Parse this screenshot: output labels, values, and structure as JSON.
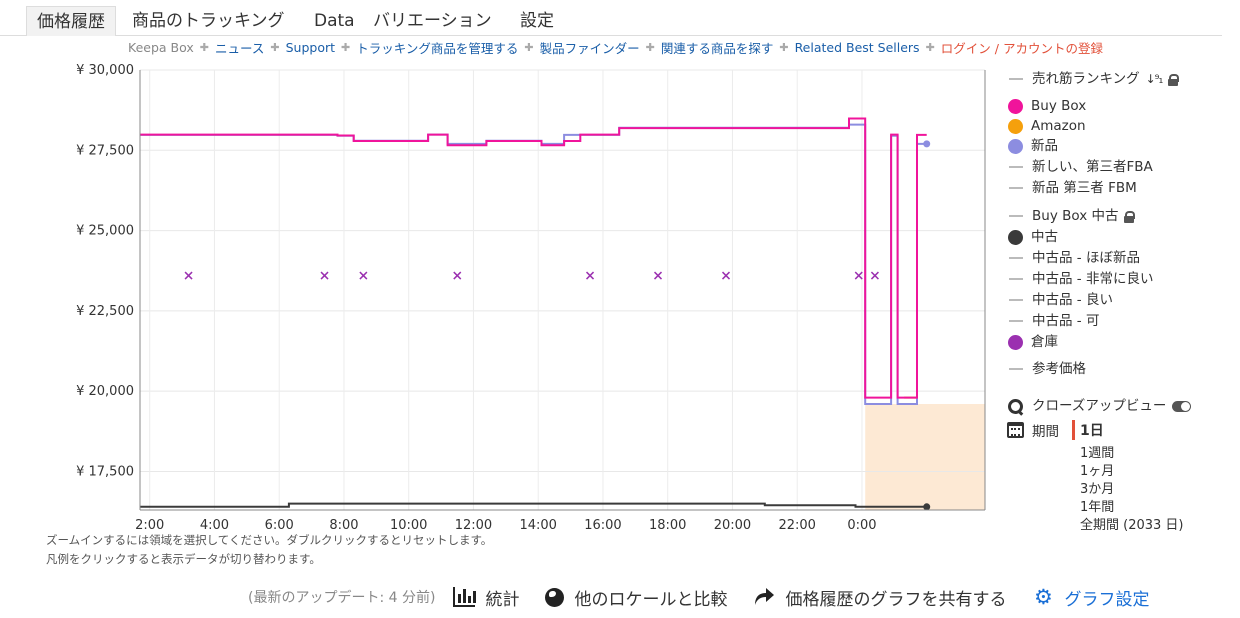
{
  "tabs": [
    {
      "label": "価格履歴",
      "active": true
    },
    {
      "label": "商品のトラッキング",
      "active": false
    },
    {
      "label": "Data",
      "active": false
    },
    {
      "label": "バリエーション",
      "active": false
    },
    {
      "label": "設定",
      "active": false
    }
  ],
  "subnav": {
    "keepa_box": "Keepa Box",
    "links": [
      "ニュース",
      "Support",
      "トラッキング商品を管理する",
      "製品ファインダー",
      "関連する商品を探す",
      "Related Best Sellers"
    ],
    "login": "ログイン / アカウントの登録"
  },
  "notes": {
    "line1": "ズームインするには領域を選択してください。ダブルクリックするとリセットします。",
    "line2": "凡例をクリックすると表示データが切り替わります。"
  },
  "legend": {
    "items": [
      {
        "label": "売れ筋ランキング",
        "marker": "dash",
        "lock": true,
        "sort": true
      },
      {
        "label": "Buy Box",
        "marker": "dot",
        "color": "#f0149b"
      },
      {
        "label": "Amazon",
        "marker": "dot",
        "color": "#f5a00c"
      },
      {
        "label": "新品",
        "marker": "dot",
        "color": "#8c8de0"
      },
      {
        "label": "新しい、第三者FBA",
        "marker": "dash"
      },
      {
        "label": "新品 第三者 FBM",
        "marker": "dash"
      },
      {
        "label": "Buy Box 中古",
        "marker": "dash",
        "lock": true
      },
      {
        "label": "中古",
        "marker": "dot",
        "color": "#3a3a3a"
      },
      {
        "label": "中古品 - ほぼ新品",
        "marker": "dash"
      },
      {
        "label": "中古品 - 非常に良い",
        "marker": "dash"
      },
      {
        "label": "中古品 - 良い",
        "marker": "dash"
      },
      {
        "label": "中古品 - 可",
        "marker": "dash"
      },
      {
        "label": "倉庫",
        "marker": "dot",
        "color": "#9b30b0"
      },
      {
        "label": "参考価格",
        "marker": "dash"
      }
    ],
    "closeup_label": "クローズアップビュー",
    "period_label": "期間",
    "period_options": [
      "1日",
      "1週間",
      "1ヶ月",
      "3か月",
      "1年間",
      "全期間 (2033 日)"
    ],
    "period_selected": "1日"
  },
  "footer": {
    "update": "(最新のアップデート: 4 分前)",
    "stats": "統計",
    "compare": "他のロケールと比較",
    "share": "価格履歴のグラフを共有する",
    "settings": "グラフ設定"
  },
  "chart_data": {
    "type": "line",
    "x_unit": "hours (Day 0 0:00 = 0, 0:00 on the next day = 24)",
    "x_range": [
      -0.3,
      25.8
    ],
    "xticks": [
      {
        "x": 0,
        "label": "2:00"
      },
      {
        "x": 2,
        "label": "4:00"
      },
      {
        "x": 4,
        "label": "6:00"
      },
      {
        "x": 6,
        "label": "8:00"
      },
      {
        "x": 8,
        "label": "10:00"
      },
      {
        "x": 10,
        "label": "12:00"
      },
      {
        "x": 12,
        "label": "14:00"
      },
      {
        "x": 14,
        "label": "16:00"
      },
      {
        "x": 16,
        "label": "18:00"
      },
      {
        "x": 18,
        "label": "20:00"
      },
      {
        "x": 20,
        "label": "22:00"
      },
      {
        "x": 22,
        "label": "0:00"
      }
    ],
    "ylim": [
      16300,
      30000
    ],
    "yticks": [
      {
        "v": 17500,
        "label": "¥ 17,500"
      },
      {
        "v": 20000,
        "label": "¥ 20,000"
      },
      {
        "v": 22500,
        "label": "¥ 22,500"
      },
      {
        "v": 25000,
        "label": "¥ 25,000"
      },
      {
        "v": 27500,
        "label": "¥ 27,500"
      },
      {
        "v": 30000,
        "label": "¥ 30,000"
      }
    ],
    "grid": true,
    "shaded_regions": [
      {
        "x0": 22.1,
        "x1": 25.8,
        "y_top": 19600,
        "color": "#fde9d4"
      }
    ],
    "series": [
      {
        "name": "新品",
        "color": "#8c8de0",
        "width": 2,
        "step": true,
        "points": [
          [
            -0.3,
            27980
          ],
          [
            5.8,
            27980
          ],
          [
            5.8,
            27950
          ],
          [
            6.3,
            27950
          ],
          [
            6.3,
            27800
          ],
          [
            8.6,
            27800
          ],
          [
            8.6,
            27990
          ],
          [
            9.2,
            27990
          ],
          [
            9.2,
            27700
          ],
          [
            10.4,
            27700
          ],
          [
            10.4,
            27800
          ],
          [
            12.1,
            27800
          ],
          [
            12.1,
            27700
          ],
          [
            12.8,
            27700
          ],
          [
            12.8,
            27980
          ],
          [
            14.5,
            27980
          ],
          [
            14.5,
            28200
          ],
          [
            21.6,
            28200
          ],
          [
            21.6,
            28300
          ],
          [
            22.1,
            28300
          ],
          [
            22.1,
            19600
          ],
          [
            22.9,
            19600
          ],
          [
            22.9,
            27950
          ],
          [
            23.1,
            27950
          ],
          [
            23.1,
            19600
          ],
          [
            23.7,
            19600
          ],
          [
            23.7,
            27700
          ],
          [
            24.0,
            27700
          ]
        ],
        "end_dot": true
      },
      {
        "name": "Amazon",
        "color": "#f5a00c",
        "width": 2,
        "step": true,
        "points": [
          [
            23.3,
            19800
          ],
          [
            23.7,
            19800
          ]
        ]
      },
      {
        "name": "Buy Box",
        "color": "#f0149b",
        "width": 2,
        "step": true,
        "points": [
          [
            -0.3,
            27990
          ],
          [
            5.8,
            27990
          ],
          [
            5.8,
            27960
          ],
          [
            6.3,
            27960
          ],
          [
            6.3,
            27790
          ],
          [
            8.6,
            27790
          ],
          [
            8.6,
            27990
          ],
          [
            9.2,
            27990
          ],
          [
            9.2,
            27660
          ],
          [
            10.4,
            27660
          ],
          [
            10.4,
            27790
          ],
          [
            12.1,
            27790
          ],
          [
            12.1,
            27660
          ],
          [
            12.8,
            27660
          ],
          [
            12.8,
            27790
          ],
          [
            13.3,
            27790
          ],
          [
            13.3,
            27990
          ],
          [
            14.5,
            27990
          ],
          [
            14.5,
            28190
          ],
          [
            21.6,
            28190
          ],
          [
            21.6,
            28490
          ],
          [
            22.1,
            28490
          ],
          [
            22.1,
            19800
          ],
          [
            22.9,
            19800
          ],
          [
            22.9,
            27990
          ],
          [
            23.1,
            27990
          ],
          [
            23.1,
            19800
          ],
          [
            23.7,
            19800
          ],
          [
            23.7,
            27980
          ],
          [
            24.0,
            27980
          ]
        ]
      },
      {
        "name": "中古",
        "color": "#3a3a3a",
        "width": 2,
        "step": true,
        "points": [
          [
            -0.3,
            16400
          ],
          [
            4.3,
            16400
          ],
          [
            4.3,
            16500
          ],
          [
            19.0,
            16500
          ],
          [
            19.0,
            16450
          ],
          [
            21.8,
            16450
          ],
          [
            21.8,
            16400
          ],
          [
            24.0,
            16400
          ]
        ],
        "end_dot": true
      },
      {
        "name": "倉庫",
        "color": "#9b30b0",
        "type": "marker",
        "marker": "x",
        "points": [
          [
            1.2,
            23600
          ],
          [
            5.4,
            23600
          ],
          [
            6.6,
            23600
          ],
          [
            9.5,
            23600
          ],
          [
            13.6,
            23600
          ],
          [
            15.7,
            23600
          ],
          [
            17.8,
            23600
          ],
          [
            21.9,
            23600
          ],
          [
            22.4,
            23600
          ]
        ]
      }
    ]
  }
}
